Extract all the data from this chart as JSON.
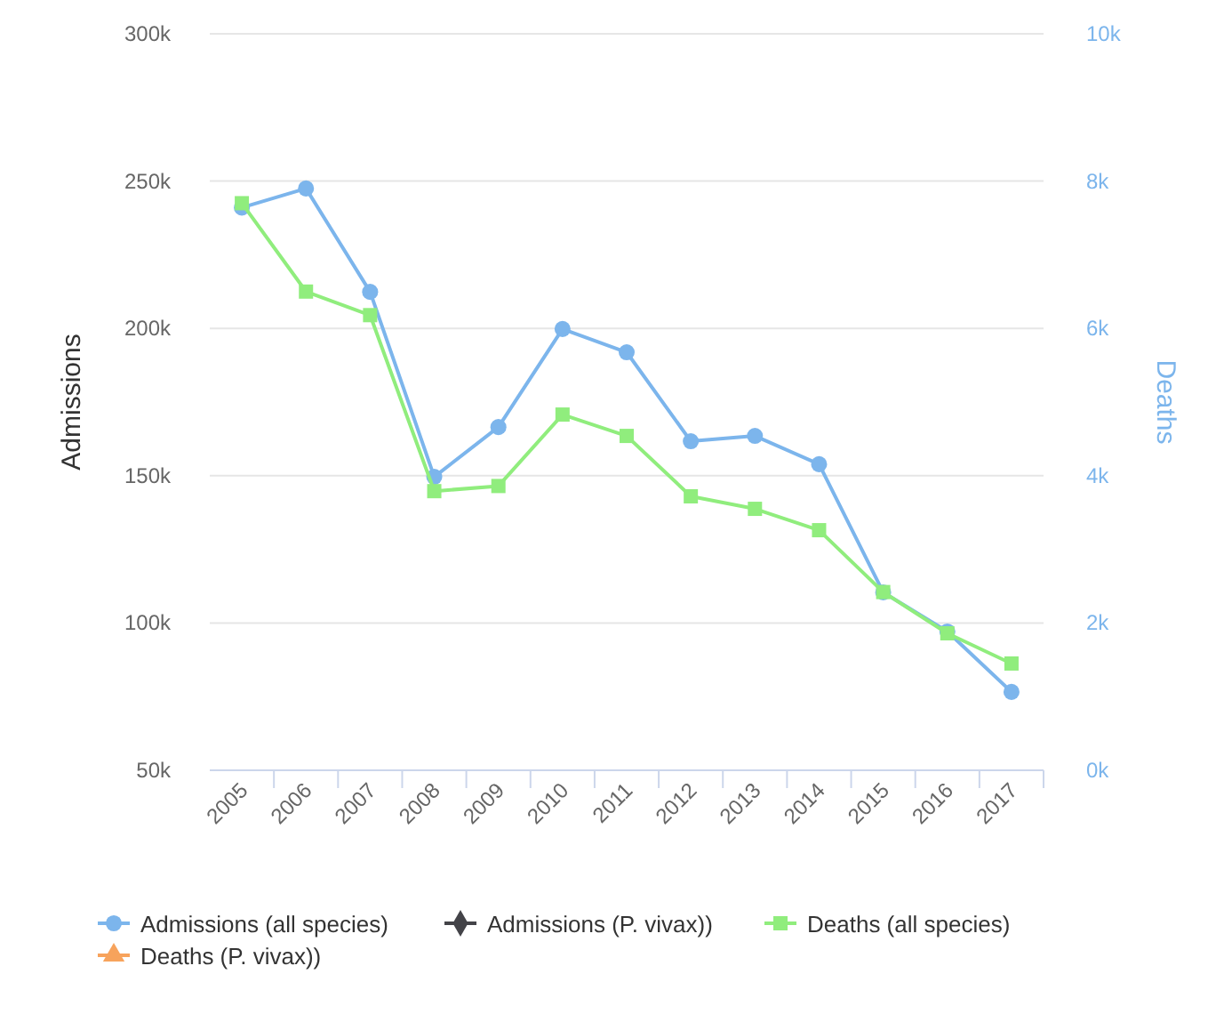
{
  "chart_data": {
    "type": "line",
    "categories": [
      "2005",
      "2006",
      "2007",
      "2008",
      "2009",
      "2010",
      "2011",
      "2012",
      "2013",
      "2014",
      "2015",
      "2016",
      "2017"
    ],
    "ylabel": "Admissions",
    "y2label": "Deaths",
    "ylim": [
      50000,
      300000
    ],
    "yticks": [
      {
        "value": 50000,
        "label": "50k"
      },
      {
        "value": 100000,
        "label": "100k"
      },
      {
        "value": 150000,
        "label": "150k"
      },
      {
        "value": 200000,
        "label": "200k"
      },
      {
        "value": 250000,
        "label": "250k"
      },
      {
        "value": 300000,
        "label": "300k"
      }
    ],
    "y2lim": [
      0,
      10000
    ],
    "y2ticks": [
      {
        "value": 0,
        "label": "0k"
      },
      {
        "value": 2000,
        "label": "2k"
      },
      {
        "value": 4000,
        "label": "4k"
      },
      {
        "value": 6000,
        "label": "6k"
      },
      {
        "value": 8000,
        "label": "8k"
      },
      {
        "value": 10000,
        "label": "10k"
      }
    ],
    "grid": "y",
    "legend": "bottom",
    "series": [
      {
        "name": "Admissions (all species)",
        "color": "#7cb5ec",
        "marker": "circle",
        "values": [
          241000,
          247500,
          212400,
          149600,
          166500,
          199800,
          191900,
          161700,
          163500,
          153900,
          110400,
          97100,
          76600
        ]
      },
      {
        "name": "Admissions (P. vivax))",
        "color": "#434348",
        "marker": "diamond",
        "values": [
          null,
          null,
          null,
          null,
          null,
          null,
          null,
          null,
          null,
          null,
          null,
          null,
          null
        ]
      },
      {
        "name": "Deaths (all species)",
        "color": "#90ed7d",
        "marker": "square",
        "axis": "y2",
        "values": [
          7700,
          6500,
          6180,
          3790,
          3860,
          4830,
          4540,
          3720,
          3550,
          3260,
          2420,
          1860,
          1450
        ]
      },
      {
        "name": "Deaths (P. vivax))",
        "color": "#f7a35c",
        "marker": "triangle",
        "axis": "y2",
        "values": [
          null,
          null,
          null,
          null,
          null,
          null,
          null,
          null,
          null,
          null,
          null,
          null,
          null
        ]
      }
    ]
  }
}
